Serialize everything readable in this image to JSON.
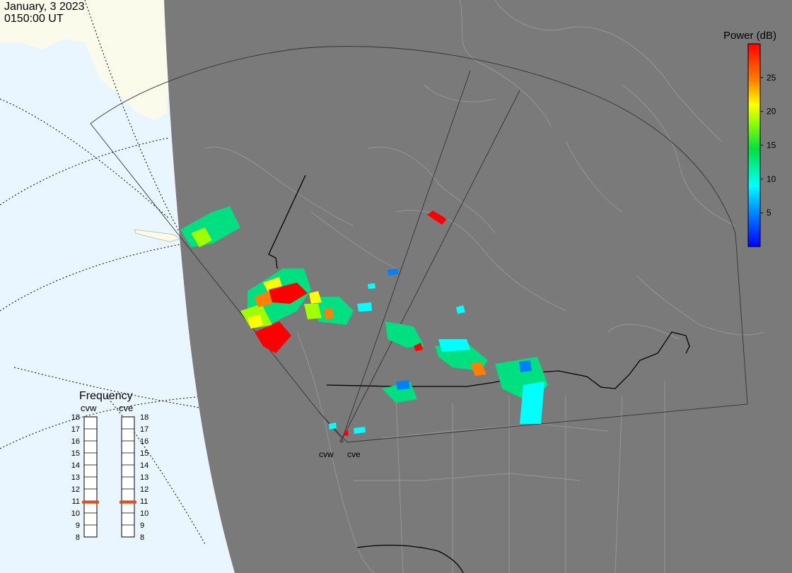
{
  "header": {
    "date": "January, 3 2023",
    "time": "0150:00 UT"
  },
  "colorbar": {
    "title": "Power (dB)",
    "min": 0,
    "max": 30,
    "ticks": [
      "5",
      "10",
      "15",
      "20",
      "25"
    ],
    "tick_values": [
      5,
      10,
      15,
      20,
      25
    ]
  },
  "radars": [
    {
      "code": "cvw",
      "frequency_mhz": 10.9
    },
    {
      "code": "cve",
      "frequency_mhz": 10.9
    }
  ],
  "frequency_panel": {
    "title": "Frequency",
    "scale": [
      "18",
      "17",
      "16",
      "15",
      "14",
      "13",
      "12",
      "11",
      "10",
      "9",
      "8"
    ],
    "min": 8,
    "max": 18
  },
  "colors": {
    "terminator_day": "#eaf6ff",
    "night": "#7a7a7a",
    "day_land": "#fbfbec",
    "indicator": "#e0501e"
  }
}
